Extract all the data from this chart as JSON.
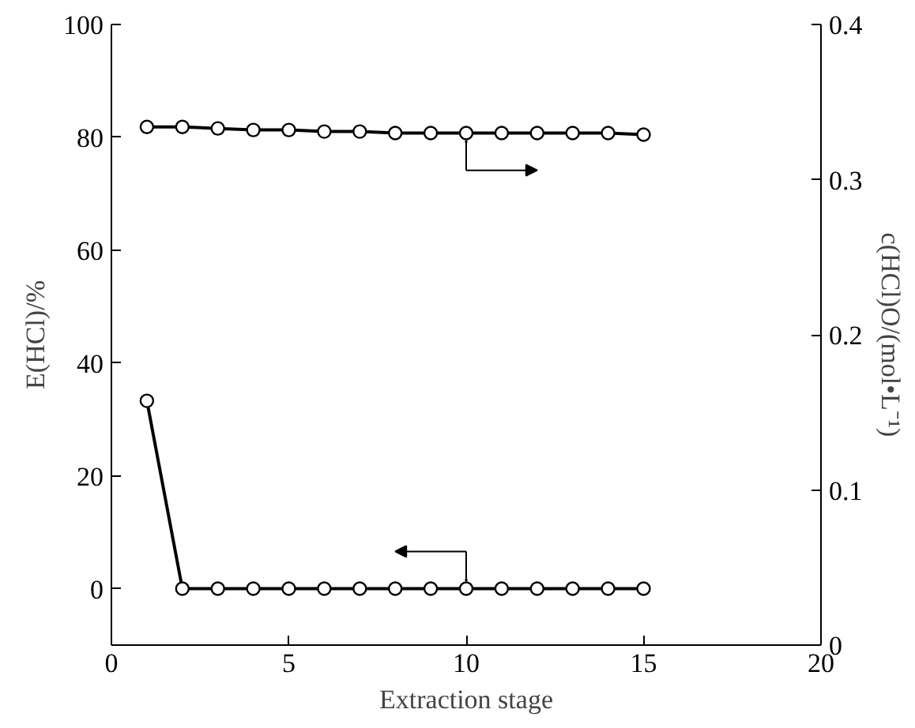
{
  "chart_data": {
    "type": "line",
    "xlabel": "Extraction stage",
    "ylabel": "E(HCl)/%",
    "y2label": "c(HCl)O/(mol•L⁻¹)",
    "xlim": [
      0,
      20
    ],
    "xticks": [
      0,
      5,
      10,
      15,
      20
    ],
    "ylim": [
      -10,
      100
    ],
    "yticks": [
      0,
      20,
      40,
      60,
      80,
      100
    ],
    "y2lim": [
      0,
      0.4
    ],
    "y2ticks": [
      0,
      0.1,
      0.2,
      0.3,
      0.4
    ],
    "marker": "circle",
    "line_style": "solid",
    "grid": false,
    "series": [
      {
        "color": "#000000",
        "x": [
          1,
          2,
          3,
          4,
          5,
          6,
          7,
          8,
          9,
          10,
          11,
          12,
          13,
          14,
          15
        ],
        "values": [
          33.3,
          0,
          0,
          0,
          0,
          0,
          0,
          0,
          0,
          0,
          0,
          0,
          0,
          0,
          0
        ]
      },
      {
        "color": "#000000",
        "axis": "y2",
        "x": [
          1,
          2,
          3,
          4,
          5,
          6,
          7,
          8,
          9,
          10,
          11,
          12,
          13,
          14,
          15
        ],
        "values": [
          0.334,
          0.334,
          0.333,
          0.332,
          0.332,
          0.331,
          0.331,
          0.33,
          0.33,
          0.33,
          0.33,
          0.33,
          0.33,
          0.33,
          0.329
        ]
      }
    ]
  }
}
